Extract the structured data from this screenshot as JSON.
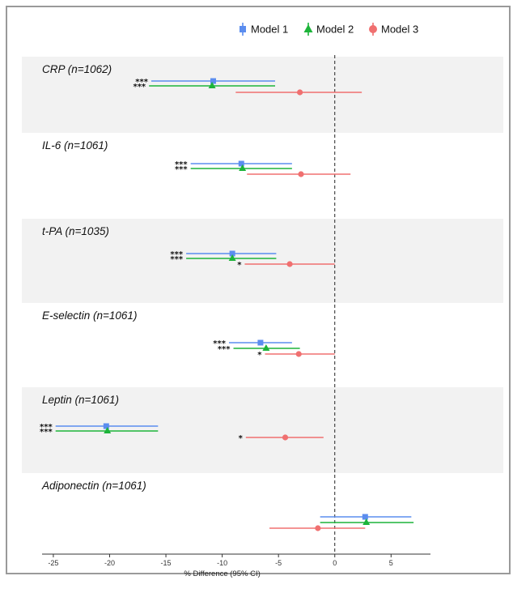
{
  "chart_data": {
    "type": "forest",
    "xlabel": "% Difference (95% CI)",
    "xlim": [
      -26,
      8.5
    ],
    "xticks": [
      -25,
      -20,
      -15,
      -10,
      -5,
      0,
      5
    ],
    "reference_line": 0,
    "legend": {
      "placement": "top",
      "entries": [
        {
          "name": "Model 1",
          "color": "#5b8def",
          "marker": "square"
        },
        {
          "name": "Model 2",
          "color": "#1db43a",
          "marker": "triangle"
        },
        {
          "name": "Model 3",
          "color": "#f07070",
          "marker": "circle"
        }
      ]
    },
    "panels": [
      {
        "label": "CRP (n=1062)",
        "shaded": true,
        "rows": [
          {
            "model": "Model 1",
            "est": -10.8,
            "lo": -16.3,
            "hi": -5.3,
            "sig": "***"
          },
          {
            "model": "Model 2",
            "est": -10.9,
            "lo": -16.5,
            "hi": -5.3,
            "sig": "***"
          },
          {
            "model": "Model 3",
            "est": -3.1,
            "lo": -8.8,
            "hi": 2.4,
            "sig": ""
          }
        ]
      },
      {
        "label": "IL-6 (n=1061)",
        "shaded": false,
        "rows": [
          {
            "model": "Model 1",
            "est": -8.3,
            "lo": -12.8,
            "hi": -3.8,
            "sig": "***"
          },
          {
            "model": "Model 2",
            "est": -8.2,
            "lo": -12.8,
            "hi": -3.8,
            "sig": "***"
          },
          {
            "model": "Model 3",
            "est": -3.0,
            "lo": -7.8,
            "hi": 1.4,
            "sig": ""
          }
        ]
      },
      {
        "label": "t-PA (n=1035)",
        "shaded": true,
        "rows": [
          {
            "model": "Model 1",
            "est": -9.1,
            "lo": -13.2,
            "hi": -5.2,
            "sig": "***"
          },
          {
            "model": "Model 2",
            "est": -9.1,
            "lo": -13.2,
            "hi": -5.2,
            "sig": "***"
          },
          {
            "model": "Model 3",
            "est": -4.0,
            "lo": -8.0,
            "hi": 0.0,
            "sig": "*"
          }
        ]
      },
      {
        "label": "E-selectin (n=1061)",
        "shaded": false,
        "rows": [
          {
            "model": "Model 1",
            "est": -6.6,
            "lo": -9.4,
            "hi": -3.8,
            "sig": "***"
          },
          {
            "model": "Model 2",
            "est": -6.1,
            "lo": -9.0,
            "hi": -3.1,
            "sig": "***"
          },
          {
            "model": "Model 3",
            "est": -3.2,
            "lo": -6.2,
            "hi": 0.0,
            "sig": "*"
          }
        ]
      },
      {
        "label": "Leptin (n=1061)",
        "shaded": true,
        "rows": [
          {
            "model": "Model 1",
            "est": -20.3,
            "lo": -24.8,
            "hi": -15.7,
            "sig": "***"
          },
          {
            "model": "Model 2",
            "est": -20.2,
            "lo": -24.8,
            "hi": -15.7,
            "sig": "***"
          },
          {
            "model": "Model 3",
            "est": -4.4,
            "lo": -7.9,
            "hi": -1.0,
            "sig": "*"
          }
        ]
      },
      {
        "label": "Adiponectin (n=1061)",
        "shaded": false,
        "rows": [
          {
            "model": "Model 1",
            "est": 2.7,
            "lo": -1.3,
            "hi": 6.8,
            "sig": ""
          },
          {
            "model": "Model 2",
            "est": 2.8,
            "lo": -1.3,
            "hi": 7.0,
            "sig": ""
          },
          {
            "model": "Model 3",
            "est": -1.5,
            "lo": -5.8,
            "hi": 2.7,
            "sig": ""
          }
        ]
      }
    ]
  }
}
